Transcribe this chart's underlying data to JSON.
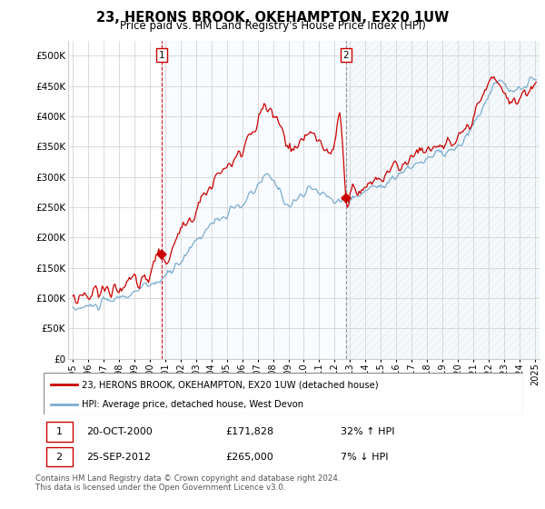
{
  "title": "23, HERONS BROOK, OKEHAMPTON, EX20 1UW",
  "subtitle": "Price paid vs. HM Land Registry's House Price Index (HPI)",
  "legend_label_red": "23, HERONS BROOK, OKEHAMPTON, EX20 1UW (detached house)",
  "legend_label_blue": "HPI: Average price, detached house, West Devon",
  "transaction1_date": "20-OCT-2000",
  "transaction1_price": 171828,
  "transaction1_hpi": "32% ↑ HPI",
  "transaction1_x": 2000.79,
  "transaction2_date": "25-SEP-2012",
  "transaction2_price": 265000,
  "transaction2_hpi": "7% ↓ HPI",
  "transaction2_x": 2012.73,
  "footer": "Contains HM Land Registry data © Crown copyright and database right 2024.\nThis data is licensed under the Open Government Licence v3.0.",
  "ylim": [
    0,
    525000
  ],
  "yticks": [
    0,
    50000,
    100000,
    150000,
    200000,
    250000,
    300000,
    350000,
    400000,
    450000,
    500000
  ],
  "background_color": "#ffffff",
  "grid_color": "#cccccc",
  "red_color": "#cc0000",
  "blue_color": "#7aadcf",
  "fill_color": "#ddeeff",
  "xlim_left": 1994.7,
  "xlim_right": 2025.3
}
